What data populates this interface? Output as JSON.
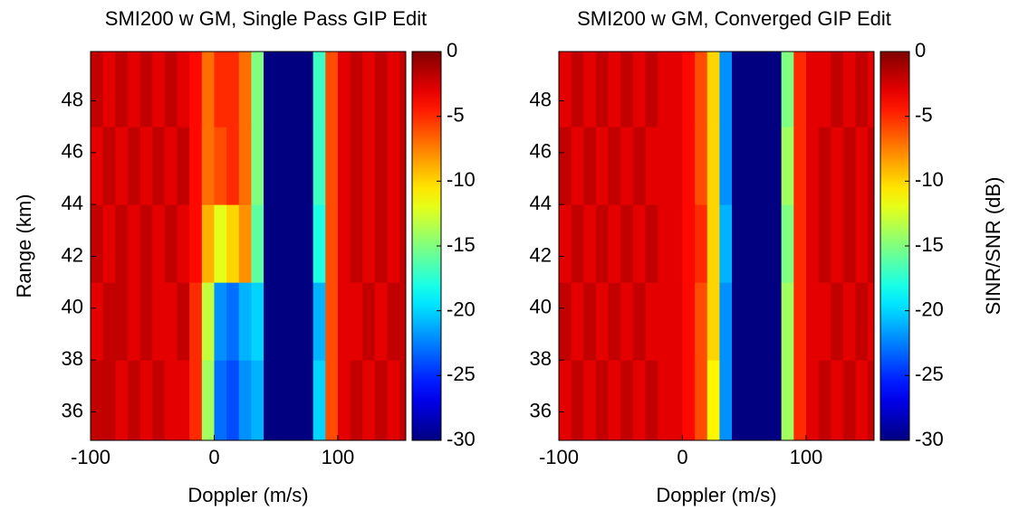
{
  "chart_data": [
    {
      "type": "heatmap",
      "title": "SMI200 w GM, Single Pass GIP Edit",
      "xlabel": "Doppler (m/s)",
      "ylabel": "Range (km)",
      "xlim": [
        -100,
        155
      ],
      "xticks": [
        -100,
        0,
        100
      ],
      "ylim": [
        34.9,
        49.9
      ],
      "yticks": [
        36,
        38,
        40,
        42,
        44,
        46,
        48
      ],
      "xbins": [
        -100,
        -90,
        -80,
        -70,
        -60,
        -50,
        -40,
        -30,
        -20,
        -10,
        0,
        10,
        20,
        30,
        40,
        50,
        60,
        70,
        80,
        90,
        100,
        110,
        120,
        130,
        140,
        150,
        155
      ],
      "ybins": [
        34.9,
        38,
        41,
        44,
        47,
        49.9
      ],
      "z": [
        [
          -2,
          -2,
          -3,
          -2,
          -3,
          -2,
          -3,
          -3,
          -5,
          -14,
          -23,
          -24,
          -22,
          -21,
          -30,
          -30,
          -30,
          -30,
          -20,
          -6,
          -3,
          -2,
          -3,
          -2,
          -3,
          -2
        ],
        [
          -3,
          -2,
          -2,
          -3,
          -2,
          -3,
          -3,
          -2,
          -5,
          -13,
          -22,
          -23,
          -21,
          -20,
          -30,
          -30,
          -30,
          -30,
          -21,
          -6,
          -3,
          -3,
          -2,
          -3,
          -2,
          -2
        ],
        [
          -2,
          -3,
          -2,
          -3,
          -2,
          -3,
          -2,
          -3,
          -4,
          -9,
          -12,
          -10,
          -8,
          -16,
          -30,
          -30,
          -30,
          -30,
          -18,
          -6,
          -3,
          -2,
          -3,
          -2,
          -3,
          -2
        ],
        [
          -3,
          -2,
          -3,
          -2,
          -3,
          -2,
          -3,
          -2,
          -4,
          -7,
          -6,
          -5,
          -7,
          -15,
          -30,
          -30,
          -30,
          -30,
          -17,
          -6,
          -3,
          -2,
          -3,
          -2,
          -3,
          -2
        ],
        [
          -2,
          -3,
          -2,
          -3,
          -2,
          -3,
          -2,
          -3,
          -4,
          -7,
          -5,
          -5,
          -7,
          -15,
          -30,
          -30,
          -30,
          -30,
          -17,
          -6,
          -3,
          -2,
          -3,
          -2,
          -3,
          -2
        ]
      ],
      "colormap": "jet",
      "clim": [
        -30,
        0
      ],
      "cticks": [
        0,
        -5,
        -10,
        -15,
        -20,
        -25,
        -30
      ]
    },
    {
      "type": "heatmap",
      "title": "SMI200 w GM, Converged GIP Edit",
      "xlabel": "Doppler (m/s)",
      "colorbar_label": "SINR/SNR (dB)",
      "xlim": [
        -100,
        155
      ],
      "xticks": [
        -100,
        0,
        100
      ],
      "ylim": [
        34.9,
        49.9
      ],
      "yticks": [
        36,
        38,
        40,
        42,
        44,
        46,
        48
      ],
      "xbins": [
        -100,
        -90,
        -80,
        -70,
        -60,
        -50,
        -40,
        -30,
        -20,
        -10,
        0,
        10,
        20,
        30,
        40,
        50,
        60,
        70,
        80,
        90,
        100,
        110,
        120,
        130,
        140,
        150,
        155
      ],
      "ybins": [
        34.9,
        38,
        41,
        44,
        47,
        49.9
      ],
      "z": [
        [
          -3,
          -2,
          -3,
          -2,
          -3,
          -2,
          -3,
          -2,
          -3,
          -3,
          -4,
          -6,
          -11,
          -22,
          -30,
          -30,
          -30,
          -30,
          -14,
          -5,
          -3,
          -2,
          -3,
          -2,
          -3,
          -2
        ],
        [
          -2,
          -3,
          -2,
          -3,
          -2,
          -3,
          -2,
          -3,
          -3,
          -3,
          -4,
          -6,
          -10,
          -22,
          -30,
          -30,
          -30,
          -30,
          -14,
          -5,
          -3,
          -3,
          -2,
          -3,
          -2,
          -3
        ],
        [
          -3,
          -2,
          -3,
          -2,
          -3,
          -2,
          -3,
          -2,
          -3,
          -3,
          -4,
          -5,
          -10,
          -21,
          -30,
          -30,
          -30,
          -30,
          -15,
          -5,
          -3,
          -2,
          -3,
          -2,
          -3,
          -2
        ],
        [
          -2,
          -3,
          -2,
          -3,
          -2,
          -3,
          -2,
          -3,
          -3,
          -3,
          -4,
          -6,
          -10,
          -22,
          -30,
          -30,
          -30,
          -30,
          -14,
          -5,
          -3,
          -2,
          -3,
          -2,
          -3,
          -2
        ],
        [
          -3,
          -2,
          -3,
          -2,
          -3,
          -2,
          -3,
          -2,
          -3,
          -3,
          -4,
          -6,
          -10,
          -22,
          -30,
          -30,
          -30,
          -30,
          -15,
          -5,
          -3,
          -3,
          -2,
          -3,
          -2,
          -3
        ]
      ],
      "colormap": "jet",
      "clim": [
        -30,
        0
      ],
      "cticks": [
        0,
        -5,
        -10,
        -15,
        -20,
        -25,
        -30
      ]
    }
  ]
}
